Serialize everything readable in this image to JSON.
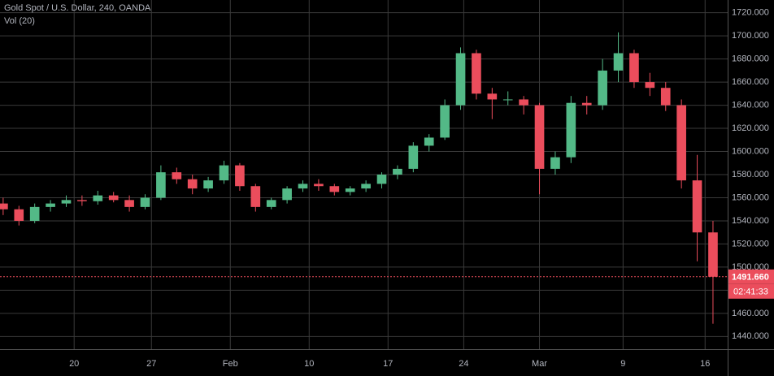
{
  "chart_data": {
    "type": "candlestick",
    "title": "Gold Spot / U.S. Dollar, 240, OANDA",
    "subtitle": "Vol (20)",
    "open": [
      1555,
      1550,
      1540,
      1552,
      1555,
      1558,
      1557,
      1562,
      1558,
      1552,
      1560,
      1582,
      1576,
      1568,
      1575,
      1588,
      1570,
      1552,
      1558,
      1568,
      1572,
      1570,
      1565,
      1568,
      1572,
      1580,
      1585,
      1605,
      1612,
      1640,
      1685,
      1650,
      1645,
      1645,
      1640,
      1585,
      1595,
      1642,
      1640,
      1670,
      1685,
      1660,
      1655,
      1640,
      1575,
      1530
    ],
    "high": [
      1560,
      1553,
      1555,
      1558,
      1562,
      1562,
      1566,
      1565,
      1562,
      1563,
      1588,
      1586,
      1580,
      1578,
      1592,
      1590,
      1572,
      1560,
      1570,
      1575,
      1576,
      1572,
      1570,
      1575,
      1582,
      1588,
      1608,
      1615,
      1645,
      1690,
      1688,
      1655,
      1652,
      1648,
      1642,
      1600,
      1648,
      1648,
      1680,
      1703,
      1688,
      1668,
      1660,
      1645,
      1597,
      1540
    ],
    "low": [
      1545,
      1536,
      1538,
      1548,
      1552,
      1553,
      1554,
      1556,
      1548,
      1550,
      1558,
      1572,
      1563,
      1565,
      1572,
      1566,
      1548,
      1550,
      1555,
      1565,
      1566,
      1562,
      1562,
      1565,
      1568,
      1576,
      1582,
      1600,
      1610,
      1636,
      1645,
      1628,
      1640,
      1632,
      1563,
      1580,
      1590,
      1632,
      1636,
      1660,
      1655,
      1648,
      1635,
      1568,
      1505,
      1451
    ],
    "close": [
      1550,
      1540,
      1552,
      1555,
      1558,
      1557,
      1562,
      1558,
      1552,
      1560,
      1582,
      1576,
      1568,
      1575,
      1588,
      1570,
      1552,
      1558,
      1568,
      1572,
      1570,
      1565,
      1568,
      1572,
      1580,
      1585,
      1605,
      1612,
      1640,
      1685,
      1650,
      1645,
      1645,
      1640,
      1585,
      1595,
      1642,
      1640,
      1670,
      1685,
      1660,
      1655,
      1640,
      1575,
      1530,
      1491.66
    ],
    "up_color": "#53b987",
    "down_color": "#eb4d5c",
    "xlim": [
      -0.2,
      45.93
    ],
    "xticks": [
      {
        "value": 4.5,
        "label": "20"
      },
      {
        "value": 9.4,
        "label": "27"
      },
      {
        "value": 14.4,
        "label": "Feb"
      },
      {
        "value": 19.4,
        "label": "10"
      },
      {
        "value": 24.4,
        "label": "17"
      },
      {
        "value": 29.2,
        "label": "24"
      },
      {
        "value": 34.0,
        "label": "Mar"
      },
      {
        "value": 39.3,
        "label": "9"
      },
      {
        "value": 44.5,
        "label": "16"
      }
    ],
    "ylim": [
      1429,
      1731
    ],
    "yticks": [
      {
        "value": 1440,
        "label": "1440.000"
      },
      {
        "value": 1460,
        "label": "1460.000"
      },
      {
        "value": 1480,
        "label": "1480.000"
      },
      {
        "value": 1500,
        "label": "1500.000"
      },
      {
        "value": 1520,
        "label": "1520.000"
      },
      {
        "value": 1540,
        "label": "1540.000"
      },
      {
        "value": 1560,
        "label": "1560.000"
      },
      {
        "value": 1580,
        "label": "1580.000"
      },
      {
        "value": 1600,
        "label": "1600.000"
      },
      {
        "value": 1620,
        "label": "1620.000"
      },
      {
        "value": 1640,
        "label": "1640.000"
      },
      {
        "value": 1660,
        "label": "1660.000"
      },
      {
        "value": 1680,
        "label": "1680.000"
      },
      {
        "value": 1700,
        "label": "1700.000"
      },
      {
        "value": 1720,
        "label": "1720.000"
      }
    ],
    "grid": true,
    "last_price": {
      "value": 1491.66,
      "label": "1491.660",
      "color": "#eb4d5c"
    },
    "countdown": "02:41:33"
  }
}
